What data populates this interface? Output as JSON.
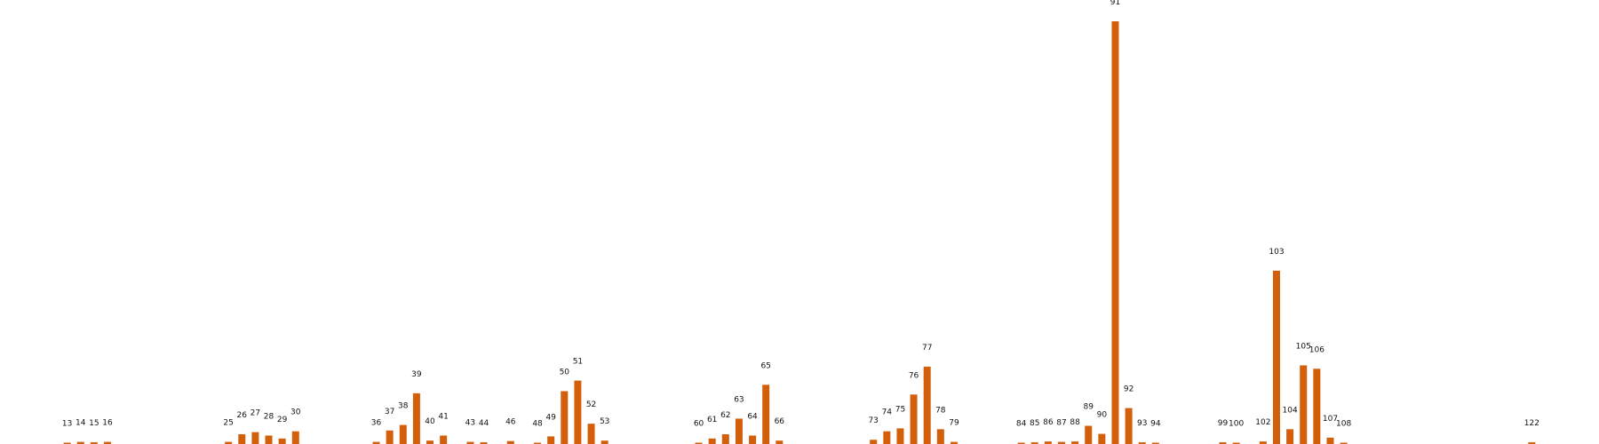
{
  "chart_data": {
    "type": "bar",
    "title": "",
    "xlabel": "",
    "ylabel": "",
    "grid": false,
    "legend": false,
    "bar_color": "#d35f0a",
    "x_range": [
      8,
      127
    ],
    "ylim": [
      0,
      100
    ],
    "x": [
      13,
      14,
      15,
      16,
      25,
      26,
      27,
      28,
      29,
      30,
      36,
      37,
      38,
      39,
      40,
      41,
      43,
      44,
      46,
      48,
      49,
      50,
      51,
      52,
      53,
      60,
      61,
      62,
      63,
      64,
      65,
      66,
      73,
      74,
      75,
      76,
      77,
      78,
      79,
      84,
      85,
      86,
      87,
      88,
      89,
      90,
      91,
      92,
      93,
      94,
      99,
      100,
      102,
      103,
      104,
      105,
      106,
      107,
      108,
      122
    ],
    "values": [
      0.3,
      0.5,
      0.4,
      0.5,
      0.5,
      2.3,
      2.8,
      2.0,
      1.3,
      3.0,
      0.5,
      3.2,
      4.5,
      12.0,
      0.8,
      2.0,
      0.5,
      0.4,
      0.7,
      0.3,
      1.8,
      12.5,
      15.0,
      4.8,
      0.8,
      0.3,
      1.3,
      2.3,
      6.0,
      2.0,
      14.0,
      0.8,
      1.0,
      3.0,
      3.7,
      11.7,
      18.3,
      3.5,
      0.5,
      0.3,
      0.4,
      0.6,
      0.5,
      0.6,
      4.3,
      2.4,
      100.0,
      8.5,
      0.4,
      0.3,
      0.4,
      0.3,
      0.6,
      41.0,
      3.5,
      18.6,
      17.8,
      1.5,
      0.3,
      0.4
    ]
  }
}
